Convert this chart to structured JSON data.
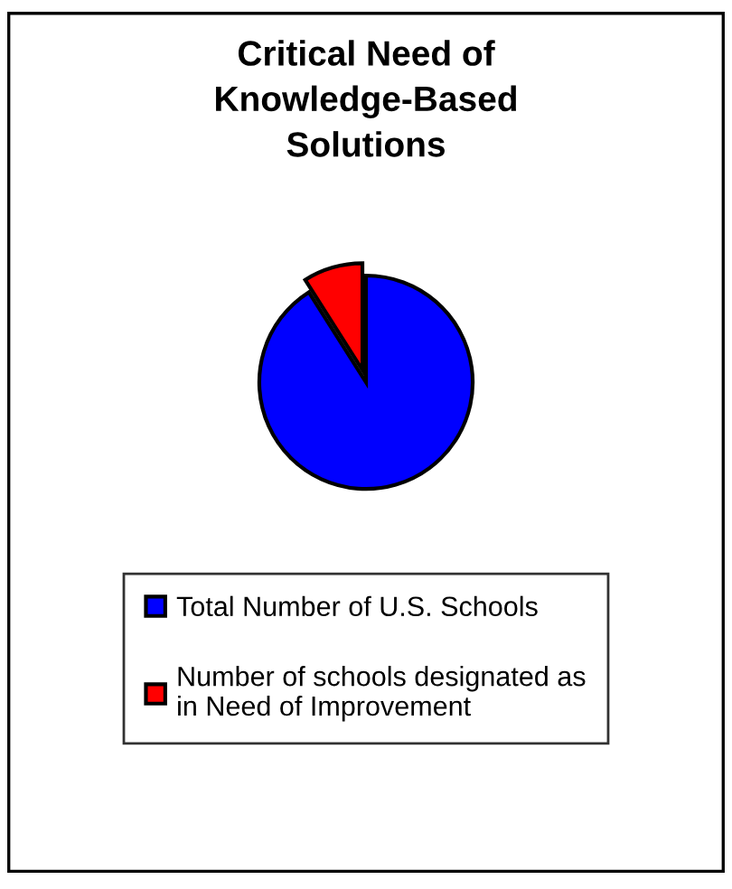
{
  "chart_data": {
    "type": "pie",
    "title": "Critical Need of\nKnowledge-Based\nSolutions",
    "categories": [
      "Total Number of U.S. Schools",
      "Number of schools designated as\nin Need of Improvement"
    ],
    "values": [
      91,
      9
    ],
    "colors": [
      "#0000ff",
      "#ff0000"
    ],
    "legend": "bottom"
  }
}
